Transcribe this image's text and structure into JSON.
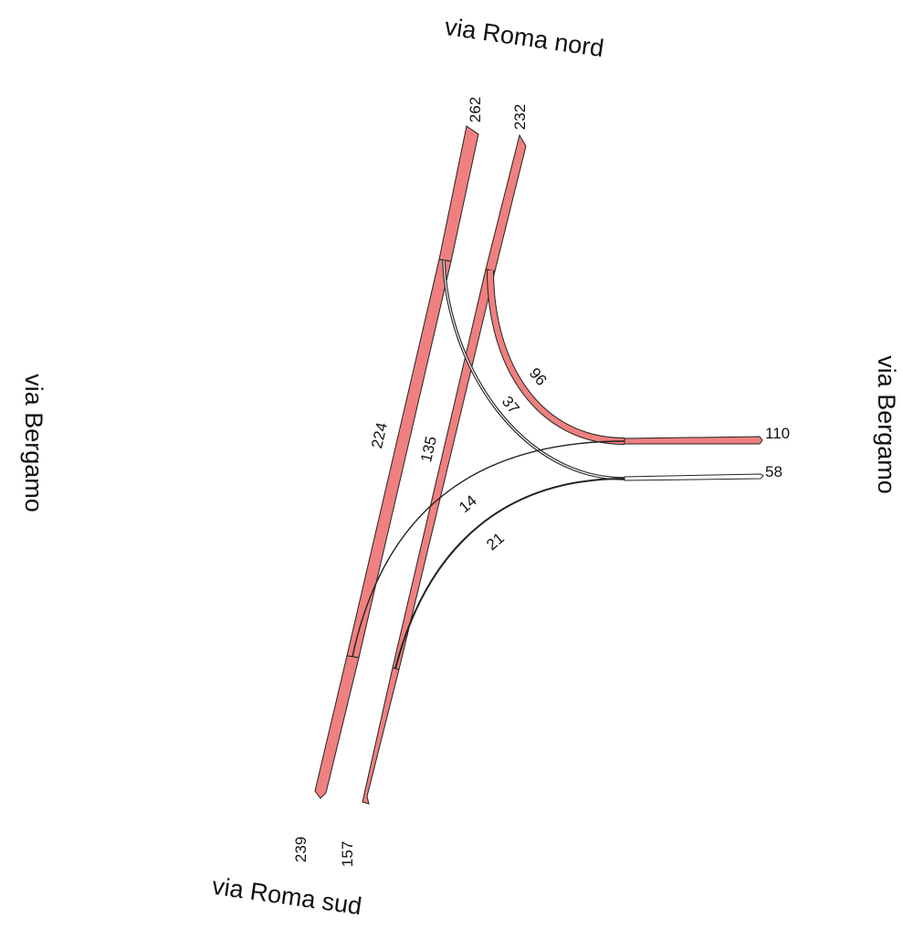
{
  "colors": {
    "flow_fill": "#f08080",
    "outline": "#222222",
    "background": "#ffffff"
  },
  "roads": {
    "north": "via Roma nord",
    "south": "via Roma sud",
    "west": "via Bergamo",
    "east": "via Bergamo"
  },
  "chart_data": {
    "type": "diagram",
    "arms": [
      {
        "id": "north-out",
        "road": "via Roma nord",
        "value": 262
      },
      {
        "id": "north-in",
        "road": "via Roma nord",
        "value": 232
      },
      {
        "id": "south-out",
        "road": "via Roma sud",
        "value": 239
      },
      {
        "id": "south-in",
        "road": "via Roma sud",
        "value": 157
      },
      {
        "id": "east-in",
        "road": "via Bergamo",
        "value": 110
      },
      {
        "id": "east-out",
        "road": "via Bergamo",
        "value": 58
      }
    ],
    "flows": [
      {
        "id": "south-to-north",
        "from": "via Roma sud",
        "to": "via Roma nord",
        "value": 224
      },
      {
        "id": "north-to-south",
        "from": "via Roma nord",
        "to": "via Roma sud",
        "value": 135
      },
      {
        "id": "north-to-east",
        "from": "via Roma nord",
        "to": "via Bergamo",
        "value": 96
      },
      {
        "id": "east-to-north",
        "from": "via Bergamo",
        "to": "via Roma nord",
        "value": 37
      },
      {
        "id": "east-to-south",
        "from": "via Bergamo",
        "to": "via Roma sud",
        "value": 14
      },
      {
        "id": "south-to-east",
        "from": "via Roma sud",
        "to": "via Bergamo",
        "value": 21
      }
    ]
  }
}
